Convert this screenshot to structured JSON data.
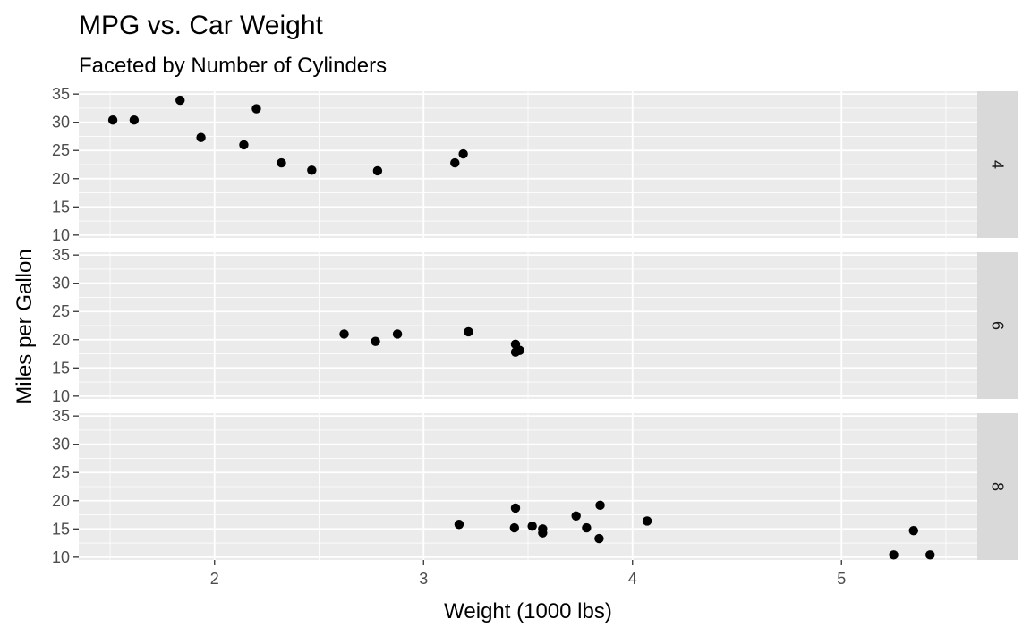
{
  "chart_data": {
    "type": "scatter",
    "title": "MPG vs. Car Weight",
    "subtitle": "Faceted by Number of Cylinders",
    "xlabel": "Weight (1000 lbs)",
    "ylabel": "Miles per Gallon",
    "xlim": [
      1.35,
      5.65
    ],
    "ylim": [
      9.5,
      35.5
    ],
    "x_ticks": [
      2,
      3,
      4,
      5
    ],
    "y_ticks": [
      10,
      15,
      20,
      25,
      30,
      35
    ],
    "grid": true,
    "facets": [
      {
        "label": "4",
        "points": [
          {
            "x": 1.513,
            "y": 30.4
          },
          {
            "x": 1.615,
            "y": 30.4
          },
          {
            "x": 1.835,
            "y": 33.9
          },
          {
            "x": 1.935,
            "y": 27.3
          },
          {
            "x": 2.14,
            "y": 26.0
          },
          {
            "x": 2.2,
            "y": 32.4
          },
          {
            "x": 2.32,
            "y": 22.8
          },
          {
            "x": 2.465,
            "y": 21.5
          },
          {
            "x": 2.78,
            "y": 21.4
          },
          {
            "x": 3.15,
            "y": 22.8
          },
          {
            "x": 3.19,
            "y": 24.4
          }
        ]
      },
      {
        "label": "6",
        "points": [
          {
            "x": 2.62,
            "y": 21.0
          },
          {
            "x": 2.77,
            "y": 19.7
          },
          {
            "x": 2.875,
            "y": 21.0
          },
          {
            "x": 3.215,
            "y": 21.4
          },
          {
            "x": 3.44,
            "y": 19.2
          },
          {
            "x": 3.44,
            "y": 17.8
          },
          {
            "x": 3.46,
            "y": 18.1
          }
        ]
      },
      {
        "label": "8",
        "points": [
          {
            "x": 3.17,
            "y": 15.8
          },
          {
            "x": 3.435,
            "y": 15.2
          },
          {
            "x": 3.44,
            "y": 18.7
          },
          {
            "x": 3.52,
            "y": 15.5
          },
          {
            "x": 3.57,
            "y": 14.3
          },
          {
            "x": 3.57,
            "y": 15.0
          },
          {
            "x": 3.73,
            "y": 17.3
          },
          {
            "x": 3.78,
            "y": 15.2
          },
          {
            "x": 3.84,
            "y": 13.3
          },
          {
            "x": 3.845,
            "y": 19.2
          },
          {
            "x": 4.07,
            "y": 16.4
          },
          {
            "x": 5.25,
            "y": 10.4
          },
          {
            "x": 5.345,
            "y": 14.7
          },
          {
            "x": 5.424,
            "y": 10.4
          }
        ]
      }
    ]
  }
}
